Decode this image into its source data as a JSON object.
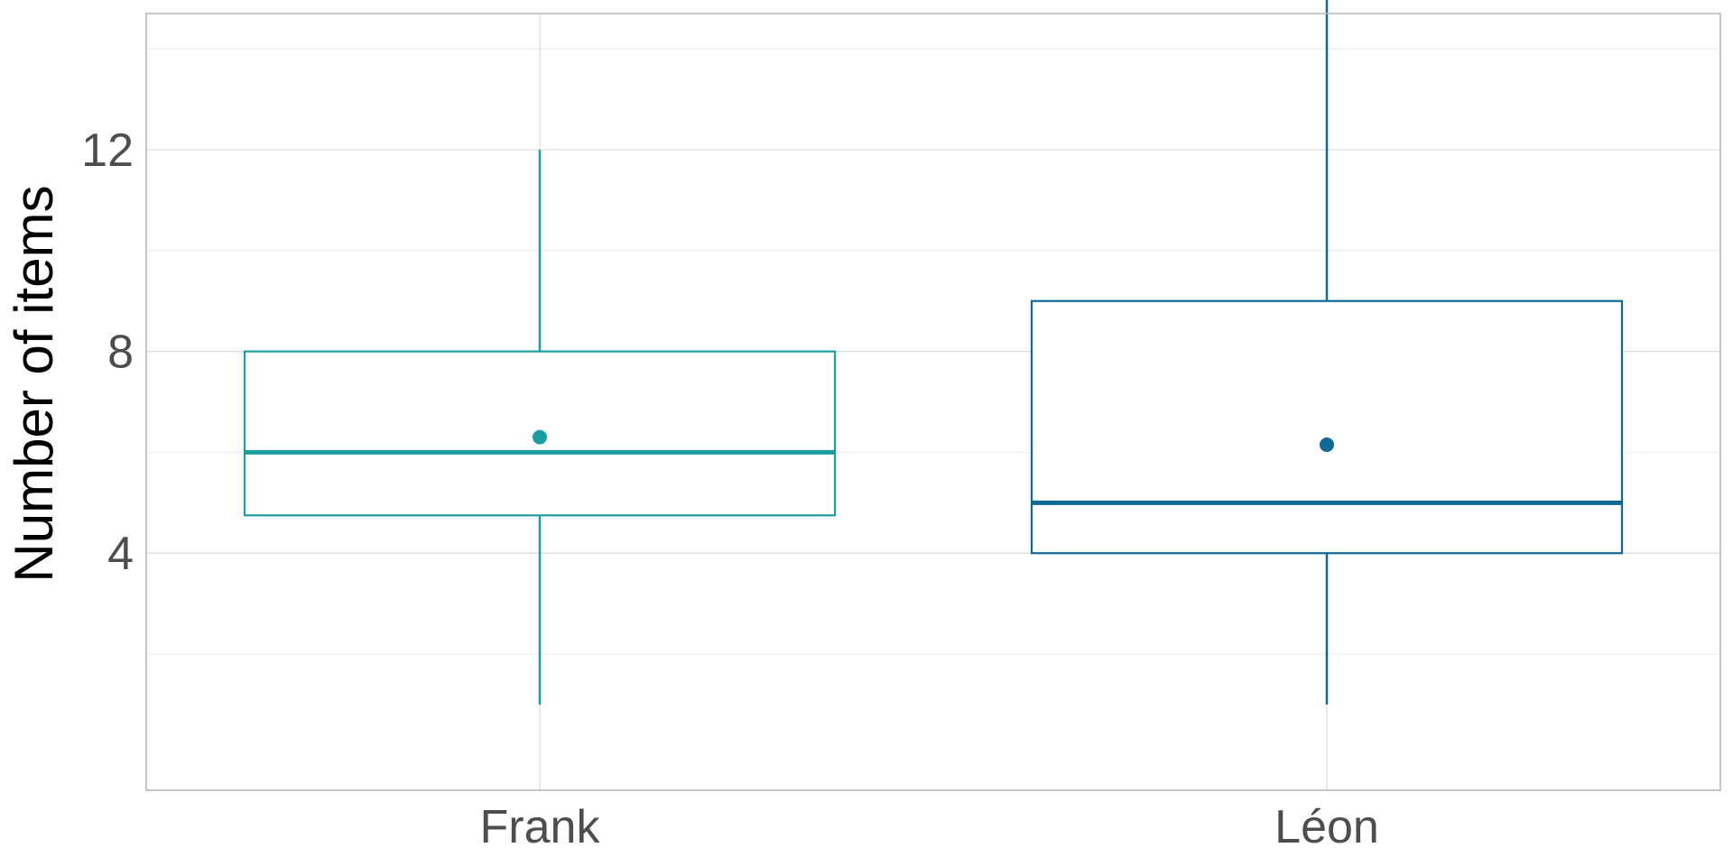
{
  "chart_data": {
    "type": "boxplot",
    "title": "",
    "xlabel": "",
    "ylabel": "Number of items",
    "categories": [
      "Frank",
      "Léon"
    ],
    "boxes": [
      {
        "category": "Frank",
        "min": 1,
        "q1": 4.75,
        "median": 6,
        "q3": 8,
        "max": 12,
        "mean": 6.3,
        "color": "#1b9e9e"
      },
      {
        "category": "Léon",
        "min": 1,
        "q1": 4,
        "median": 5,
        "q3": 9,
        "max": 15,
        "mean": 6.15,
        "color": "#0e6a94"
      }
    ],
    "ylim": [
      -0.7,
      14.7
    ],
    "yticks": [
      4,
      8,
      12
    ],
    "ytick_labels": [
      "4",
      "8",
      "12"
    ],
    "grid": true,
    "legend": "none"
  }
}
